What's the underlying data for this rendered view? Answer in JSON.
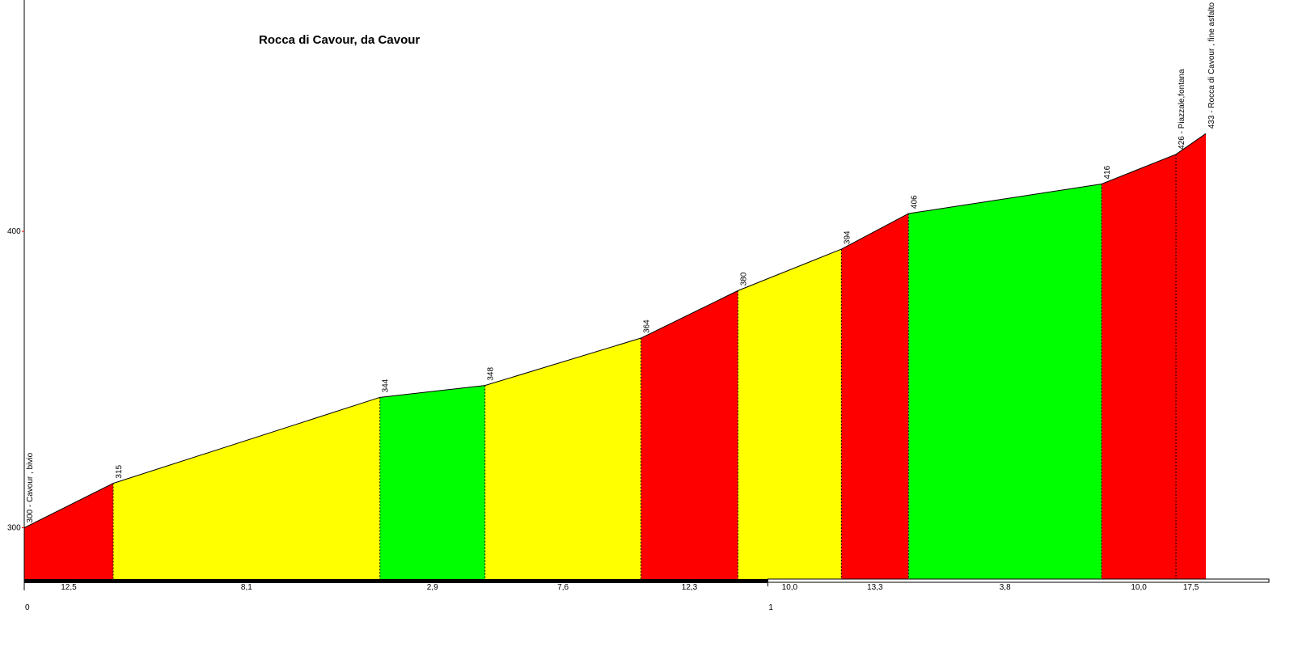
{
  "chart_data": {
    "type": "area",
    "title": "Rocca di Cavour, da Cavour",
    "x_unit": "km",
    "y_unit": "m",
    "xlim": [
      0,
      1.6739
    ],
    "ylim": [
      278.05,
      478.07
    ],
    "y_ticks": [
      300,
      400
    ],
    "x_ticks": [
      0,
      1
    ],
    "points": [
      {
        "x": 0.0,
        "y": 300,
        "label": "300 - Cavour , bivio"
      },
      {
        "x": 0.1196,
        "y": 315,
        "label": "315"
      },
      {
        "x": 0.4783,
        "y": 344,
        "label": "344"
      },
      {
        "x": 0.6196,
        "y": 348,
        "label": "348"
      },
      {
        "x": 0.8294,
        "y": 364,
        "label": "364"
      },
      {
        "x": 0.9598,
        "y": 380,
        "label": "380"
      },
      {
        "x": 1.0989,
        "y": 394,
        "label": "394"
      },
      {
        "x": 1.1891,
        "y": 406,
        "label": "406"
      },
      {
        "x": 1.4489,
        "y": 416,
        "label": "416"
      },
      {
        "x": 1.5489,
        "y": 426,
        "label": "426 - Piazzale,fontana"
      },
      {
        "x": 1.5891,
        "y": 433,
        "label": "433 - Rocca di Cavour , fine asfalto"
      }
    ],
    "segments": [
      {
        "grade": "12,5",
        "color": "#ff0000"
      },
      {
        "grade": "8,1",
        "color": "#ffff00"
      },
      {
        "grade": "2,9",
        "color": "#00ff00"
      },
      {
        "grade": "7,6",
        "color": "#ffff00"
      },
      {
        "grade": "12,3",
        "color": "#ff0000"
      },
      {
        "grade": "10,0",
        "color": "#ffff00"
      },
      {
        "grade": "13,3",
        "color": "#ff0000"
      },
      {
        "grade": "3,8",
        "color": "#00ff00"
      },
      {
        "grade": "10,0",
        "color": "#ff0000"
      },
      {
        "grade": "17,5",
        "color": "#ff0000"
      }
    ]
  }
}
